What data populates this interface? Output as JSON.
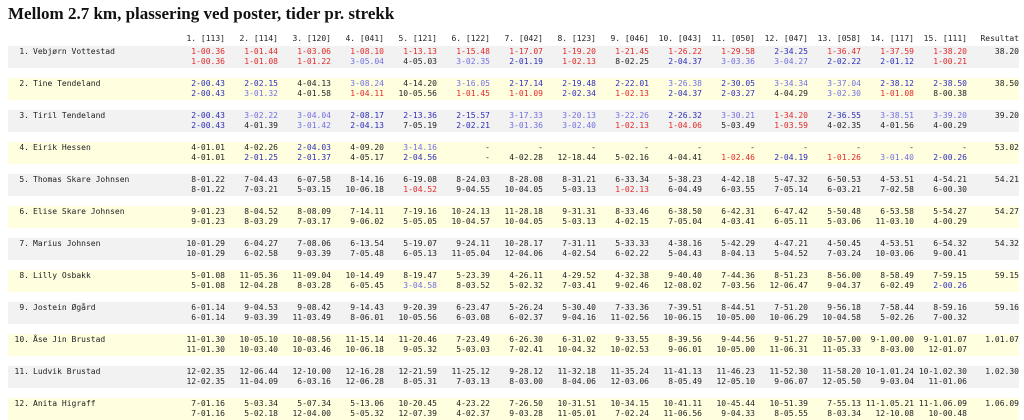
{
  "title": "Mellom 2.7 km, plassering ved poster, tider pr. strekk",
  "headers": [
    "1. [113]",
    "2. [114]",
    "3. [120]",
    "4. [041]",
    "5. [121]",
    "6. [122]",
    "7. [042]",
    "8. [123]",
    "9. [046]",
    "10. [043]",
    "11. [050]",
    "12. [047]",
    "13. [058]",
    "14. [117]",
    "15. [111]",
    "Resultat"
  ],
  "place_colors": {
    "1": "#e02828",
    "2": "#2d2db8",
    "3": "#7070e0"
  },
  "rows": [
    {
      "no": "1.",
      "name": "Vebjørn Vottestad",
      "result": "38.20",
      "split": [
        "1-00.36",
        "1-01.44",
        "1-03.06",
        "1-08.10",
        "1-13.13",
        "1-15.48",
        "1-17.07",
        "1-19.20",
        "1-21.45",
        "1-26.22",
        "1-29.58",
        "2-34.25",
        "1-36.47",
        "1-37.59",
        "1-38.20"
      ],
      "leg": [
        "1-00.36",
        "1-01.08",
        "1-01.22",
        "3-05.04",
        "4-05.03",
        "3-02.35",
        "2-01.19",
        "1-02.13",
        "8-02.25",
        "2-04.37",
        "3-03.36",
        "3-04.27",
        "2-02.22",
        "2-01.12",
        "1-00.21"
      ]
    },
    {
      "no": "2.",
      "name": "Tine Tendeland",
      "result": "38.50",
      "split": [
        "2-00.43",
        "2-02.15",
        "4-04.13",
        "3-08.24",
        "4-14.20",
        "3-16.05",
        "2-17.14",
        "2-19.48",
        "2-22.01",
        "3-26.38",
        "2-30.05",
        "3-34.34",
        "3-37.04",
        "2-38.12",
        "2-38.50"
      ],
      "leg": [
        "2-00.43",
        "3-01.32",
        "4-01.58",
        "1-04.11",
        "10-05.56",
        "1-01.45",
        "1-01.09",
        "2-02.34",
        "1-02.13",
        "2-04.37",
        "2-03.27",
        "4-04.29",
        "3-02.30",
        "1-01.08",
        "8-00.38"
      ]
    },
    {
      "no": "3.",
      "name": "Tiril Tendeland",
      "result": "39.20",
      "split": [
        "2-00.43",
        "3-02.22",
        "3-04.04",
        "2-08.17",
        "2-13.36",
        "2-15.57",
        "3-17.33",
        "3-20.13",
        "3-22.26",
        "2-26.32",
        "3-30.21",
        "1-34.20",
        "2-36.55",
        "3-38.51",
        "3-39.20"
      ],
      "leg": [
        "2-00.43",
        "4-01.39",
        "3-01.42",
        "2-04.13",
        "7-05.19",
        "2-02.21",
        "3-01.36",
        "3-02.40",
        "1-02.13",
        "1-04.06",
        "5-03.49",
        "1-03.59",
        "4-02.35",
        "4-01.56",
        "4-00.29"
      ]
    },
    {
      "no": "4.",
      "name": "Eirik Hessen",
      "result": "53.02",
      "split": [
        "4-01.01",
        "4-02.26",
        "2-04.03",
        "4-09.20",
        "3-14.16",
        "-",
        "-",
        "-",
        "-",
        "-",
        "-",
        "-",
        "-",
        "-",
        "-"
      ],
      "leg": [
        "4-01.01",
        "2-01.25",
        "2-01.37",
        "4-05.17",
        "2-04.56",
        "-",
        "4-02.28",
        "12-18.44",
        "5-02.16",
        "4-04.41",
        "1-02.46",
        "2-04.19",
        "1-01.26",
        "3-01.40",
        "2-00.26"
      ]
    },
    {
      "no": "5.",
      "name": "Thomas Skare Johnsen",
      "result": "54.21",
      "split": [
        "8-01.22",
        "7-04.43",
        "6-07.58",
        "8-14.16",
        "6-19.08",
        "8-24.03",
        "8-28.08",
        "8-31.21",
        "6-33.34",
        "5-38.23",
        "4-42.18",
        "5-47.32",
        "6-50.53",
        "4-53.51",
        "4-54.21"
      ],
      "leg": [
        "8-01.22",
        "7-03.21",
        "5-03.15",
        "10-06.18",
        "1-04.52",
        "9-04.55",
        "10-04.05",
        "5-03.13",
        "1-02.13",
        "6-04.49",
        "6-03.55",
        "7-05.14",
        "6-03.21",
        "7-02.58",
        "6-00.30"
      ]
    },
    {
      "no": "6.",
      "name": "Elise Skare Johnsen",
      "result": "54.27",
      "split": [
        "9-01.23",
        "8-04.52",
        "8-08.09",
        "7-14.11",
        "7-19.16",
        "10-24.13",
        "11-28.18",
        "9-31.31",
        "8-33.46",
        "6-38.50",
        "6-42.31",
        "6-47.42",
        "5-50.48",
        "6-53.58",
        "5-54.27"
      ],
      "leg": [
        "9-01.23",
        "8-03.29",
        "7-03.17",
        "9-06.02",
        "5-05.05",
        "10-04.57",
        "10-04.05",
        "5-03.13",
        "4-02.15",
        "7-05.04",
        "4-03.41",
        "6-05.11",
        "5-03.06",
        "11-03.10",
        "4-00.29"
      ]
    },
    {
      "no": "7.",
      "name": "Marius Johnsen",
      "result": "54.32",
      "split": [
        "10-01.29",
        "6-04.27",
        "7-08.06",
        "6-13.54",
        "5-19.07",
        "9-24.11",
        "10-28.17",
        "7-31.11",
        "5-33.33",
        "4-38.16",
        "5-42.29",
        "4-47.21",
        "4-50.45",
        "4-53.51",
        "6-54.32"
      ],
      "leg": [
        "10-01.29",
        "6-02.58",
        "9-03.39",
        "7-05.48",
        "6-05.13",
        "11-05.04",
        "12-04.06",
        "4-02.54",
        "6-02.22",
        "5-04.43",
        "8-04.13",
        "5-04.52",
        "7-03.24",
        "10-03.06",
        "9-00.41"
      ]
    },
    {
      "no": "8.",
      "name": "Lilly Osbakk",
      "result": "59.15",
      "split": [
        "5-01.08",
        "11-05.36",
        "11-09.04",
        "10-14.49",
        "8-19.47",
        "5-23.39",
        "4-26.11",
        "4-29.52",
        "4-32.38",
        "9-40.40",
        "7-44.36",
        "8-51.23",
        "8-56.00",
        "8-58.49",
        "7-59.15"
      ],
      "leg": [
        "5-01.08",
        "12-04.28",
        "8-03.28",
        "6-05.45",
        "3-04.58",
        "8-03.52",
        "5-02.32",
        "7-03.41",
        "9-02.46",
        "12-08.02",
        "7-03.56",
        "12-06.47",
        "9-04.37",
        "6-02.49",
        "2-00.26"
      ]
    },
    {
      "no": "9.",
      "name": "Jostein Øgård",
      "result": "59.16",
      "split": [
        "6-01.14",
        "9-04.53",
        "9-08.42",
        "9-14.43",
        "9-20.39",
        "6-23.47",
        "5-26.24",
        "5-30.40",
        "7-33.36",
        "7-39.51",
        "8-44.51",
        "7-51.20",
        "9-56.18",
        "7-58.44",
        "8-59.16"
      ],
      "leg": [
        "6-01.14",
        "9-03.39",
        "11-03.49",
        "8-06.01",
        "10-05.56",
        "6-03.08",
        "6-02.37",
        "9-04.16",
        "11-02.56",
        "10-06.15",
        "10-05.00",
        "10-06.29",
        "10-04.58",
        "5-02.26",
        "7-00.32"
      ]
    },
    {
      "no": "10.",
      "name": "Åse Jin Brustad",
      "result": "1.01.07",
      "split": [
        "11-01.30",
        "10-05.10",
        "10-08.56",
        "11-15.14",
        "11-20.46",
        "7-23.49",
        "6-26.30",
        "6-31.02",
        "9-33.55",
        "8-39.56",
        "9-44.56",
        "9-51.27",
        "10-57.00",
        "9-1.00.00",
        "9-1.01.07"
      ],
      "leg": [
        "11-01.30",
        "10-03.40",
        "10-03.46",
        "10-06.18",
        "9-05.32",
        "5-03.03",
        "7-02.41",
        "10-04.32",
        "10-02.53",
        "9-06.01",
        "10-05.00",
        "11-06.31",
        "11-05.33",
        "8-03.00",
        "12-01.07"
      ]
    },
    {
      "no": "11.",
      "name": "Ludvik Brustad",
      "result": "1.02.30",
      "split": [
        "12-02.35",
        "12-06.44",
        "12-10.00",
        "12-16.28",
        "12-21.59",
        "11-25.12",
        "9-28.12",
        "11-32.18",
        "11-35.24",
        "11-41.13",
        "11-46.23",
        "11-52.30",
        "11-58.20",
        "10-1.01.24",
        "10-1.02.30"
      ],
      "leg": [
        "12-02.35",
        "11-04.09",
        "6-03.16",
        "12-06.28",
        "8-05.31",
        "7-03.13",
        "8-03.00",
        "8-04.06",
        "12-03.06",
        "8-05.49",
        "12-05.10",
        "9-06.07",
        "12-05.50",
        "9-03.04",
        "11-01.06"
      ]
    },
    {
      "no": "12.",
      "name": "Anita Higraff",
      "result": "1.06.09",
      "split": [
        "7-01.16",
        "5-03.34",
        "5-07.34",
        "5-13.06",
        "10-20.45",
        "4-23.22",
        "7-26.50",
        "10-31.51",
        "10-34.15",
        "10-41.11",
        "10-45.44",
        "10-51.39",
        "7-55.13",
        "11-1.05.21",
        "11-1.06.09"
      ],
      "leg": [
        "7-01.16",
        "5-02.18",
        "12-04.00",
        "5-05.32",
        "12-07.39",
        "4-02.37",
        "9-03.28",
        "11-05.01",
        "7-02.24",
        "11-06.56",
        "9-04.33",
        "8-05.55",
        "8-03.34",
        "12-10.08",
        "10-00.48"
      ]
    }
  ]
}
